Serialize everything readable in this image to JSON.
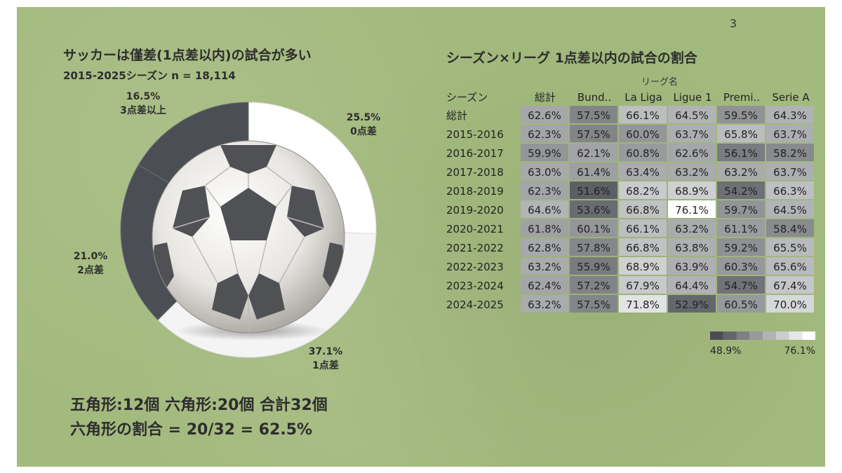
{
  "page_number": "3",
  "left": {
    "title": "サッカーは僅差(1点差以内)の試合が多い",
    "subtitle": "2015-2025シーズン n = 18,114",
    "bottom_line1": "五角形:12個 六角形:20個 合計32個",
    "bottom_line2": "六角形の割合 = 20/32 = 62.5%"
  },
  "right": {
    "title": "シーズン×リーグ 1点差以内の試合の割合",
    "column_group_title": "リーグ名",
    "row_header": "シーズン",
    "legend": {
      "min_label": "48.9%",
      "max_label": "76.1%"
    }
  },
  "colors": {
    "background": "#a3ba7e",
    "dark": "#4a4d53",
    "light": "#f4f4f4"
  },
  "icon": "soccer-ball",
  "chart_data": [
    {
      "type": "pie",
      "variant": "donut",
      "slices": [
        {
          "label": "0点差",
          "pct_label": "25.5%",
          "value": 25.5,
          "color": "#ffffff"
        },
        {
          "label": "1点差",
          "pct_label": "37.1%",
          "value": 37.1,
          "color": "#f4f4f4"
        },
        {
          "label": "2点差",
          "pct_label": "21.0%",
          "value": 21.0,
          "color": "#4b4f55"
        },
        {
          "label": "3点差以上",
          "pct_label": "16.5%",
          "value": 16.5,
          "color": "#4b4f55"
        }
      ]
    },
    {
      "type": "heatmap",
      "columns": [
        "総計",
        "Bund..",
        "La Liga",
        "Ligue 1",
        "Premi..",
        "Serie A"
      ],
      "rows": [
        "総計",
        "2015-2016",
        "2016-2017",
        "2017-2018",
        "2018-2019",
        "2019-2020",
        "2020-2021",
        "2021-2022",
        "2022-2023",
        "2023-2024",
        "2024-2025"
      ],
      "values": [
        [
          62.6,
          57.5,
          66.1,
          64.5,
          59.5,
          64.3
        ],
        [
          62.3,
          57.5,
          60.0,
          63.7,
          65.8,
          63.7
        ],
        [
          59.9,
          62.1,
          60.8,
          62.6,
          56.1,
          58.2
        ],
        [
          63.0,
          61.4,
          63.4,
          63.2,
          63.2,
          63.7
        ],
        [
          62.3,
          51.6,
          68.2,
          68.9,
          54.2,
          66.3
        ],
        [
          64.6,
          53.6,
          66.8,
          76.1,
          59.7,
          64.5
        ],
        [
          61.8,
          60.1,
          66.1,
          63.2,
          61.1,
          58.4
        ],
        [
          62.8,
          57.8,
          66.8,
          63.8,
          59.2,
          65.5
        ],
        [
          63.2,
          55.9,
          68.9,
          63.9,
          60.3,
          65.6
        ],
        [
          62.4,
          57.2,
          67.9,
          64.4,
          54.7,
          67.4
        ],
        [
          63.2,
          57.5,
          71.8,
          52.9,
          60.5,
          70.0
        ]
      ],
      "color_scale": {
        "min": 48.9,
        "max": 76.1,
        "min_color": "#4a4d53",
        "max_color": "#ffffff"
      }
    }
  ]
}
